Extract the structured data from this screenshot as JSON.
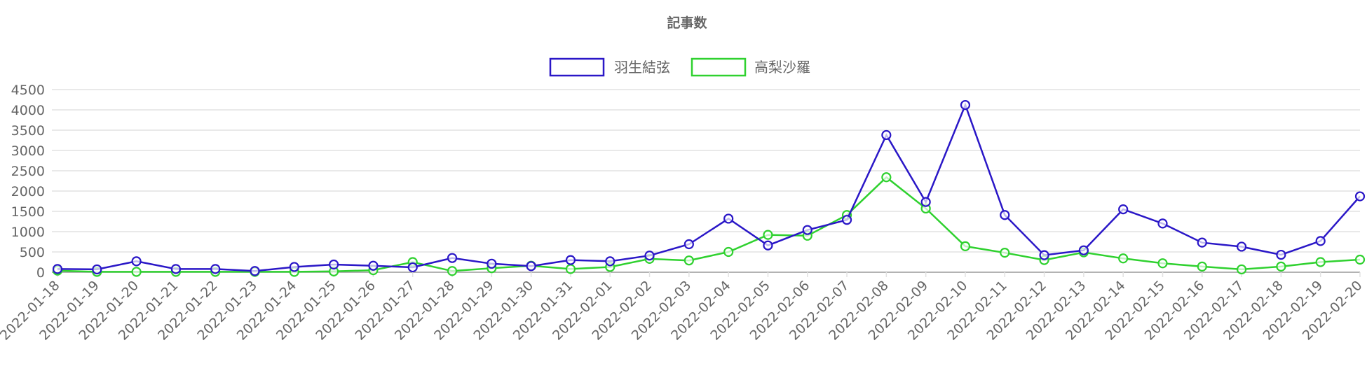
{
  "chart_data": {
    "type": "line",
    "title": "記事数",
    "legend_position": "top",
    "grid": true,
    "ylim": [
      0,
      4500
    ],
    "yticks": [
      "0",
      "500",
      "1000",
      "1500",
      "2000",
      "2500",
      "3000",
      "3500",
      "4000",
      "4500"
    ],
    "categories": [
      "2022-01-18",
      "2022-01-19",
      "2022-01-20",
      "2022-01-21",
      "2022-01-22",
      "2022-01-23",
      "2022-01-24",
      "2022-01-25",
      "2022-01-26",
      "2022-01-27",
      "2022-01-28",
      "2022-01-29",
      "2022-01-30",
      "2022-01-31",
      "2022-02-01",
      "2022-02-02",
      "2022-02-03",
      "2022-02-04",
      "2022-02-05",
      "2022-02-06",
      "2022-02-07",
      "2022-02-08",
      "2022-02-09",
      "2022-02-10",
      "2022-02-11",
      "2022-02-12",
      "2022-02-13",
      "2022-02-14",
      "2022-02-15",
      "2022-02-16",
      "2022-02-17",
      "2022-02-18",
      "2022-02-19",
      "2022-02-20"
    ],
    "series": [
      {
        "name": "羽生結弦",
        "color": "#2a17c7",
        "values": [
          80,
          70,
          270,
          80,
          80,
          30,
          130,
          190,
          160,
          120,
          350,
          210,
          150,
          300,
          270,
          410,
          690,
          1320,
          660,
          1040,
          1290,
          3380,
          1730,
          4120,
          1410,
          420,
          540,
          1550,
          1200,
          730,
          630,
          430,
          770,
          1870
        ]
      },
      {
        "name": "高梨沙羅",
        "color": "#2fd12f",
        "values": [
          40,
          10,
          10,
          10,
          10,
          10,
          10,
          20,
          50,
          250,
          30,
          100,
          160,
          80,
          130,
          330,
          290,
          500,
          920,
          900,
          1410,
          2340,
          1570,
          640,
          480,
          300,
          490,
          340,
          220,
          140,
          70,
          140,
          250,
          310
        ]
      }
    ]
  }
}
